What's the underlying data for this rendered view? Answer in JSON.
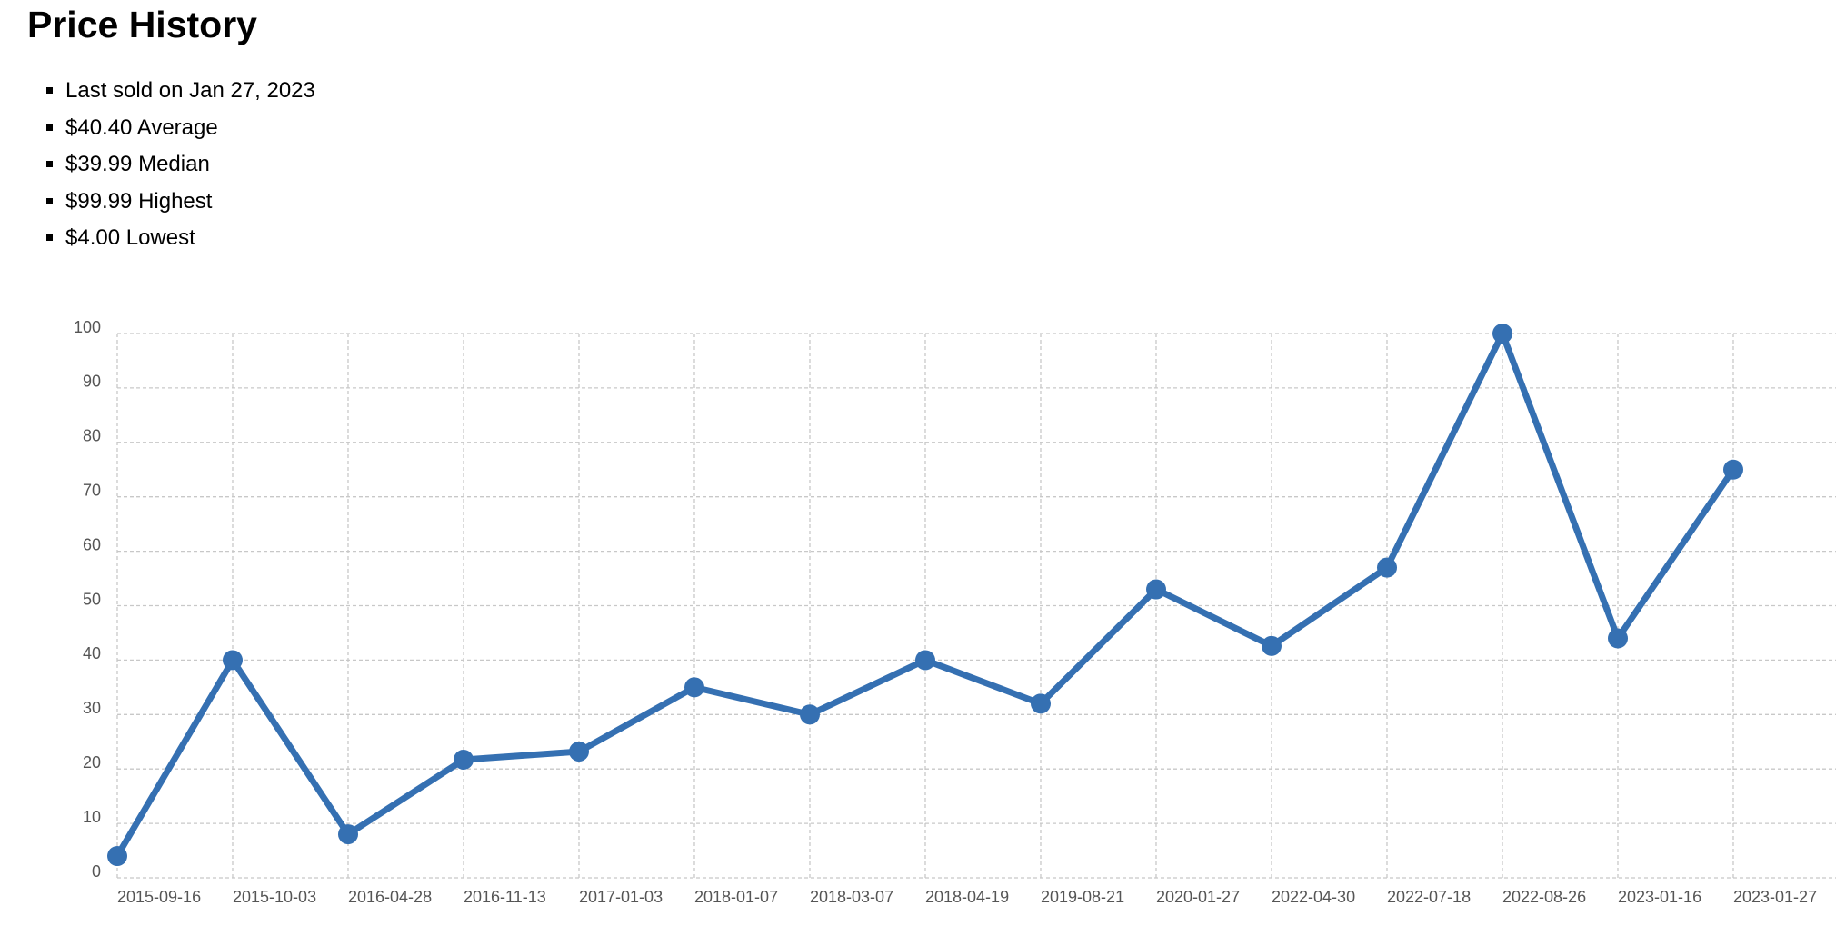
{
  "header": {
    "title": "Price History"
  },
  "stats": [
    "Last sold on Jan 27, 2023",
    "$40.40 Average",
    "$39.99 Median",
    "$99.99 Highest",
    "$4.00 Lowest"
  ],
  "chart_data": {
    "type": "line",
    "categories": [
      "2015-09-16",
      "2015-10-03",
      "2016-04-28",
      "2016-11-13",
      "2017-01-03",
      "2018-01-07",
      "2018-03-07",
      "2018-04-19",
      "2019-08-21",
      "2020-01-27",
      "2022-04-30",
      "2022-07-18",
      "2022-08-26",
      "2023-01-16",
      "2023-01-27"
    ],
    "series": [
      {
        "color": "#3570b2",
        "values": [
          4,
          39.99,
          8,
          21.7,
          23.2,
          35,
          30,
          39.99,
          32,
          53,
          42.6,
          57,
          99.99,
          44,
          75
        ]
      }
    ],
    "ylim": [
      0,
      100
    ],
    "yticks": [
      0,
      10,
      20,
      30,
      40,
      50,
      60,
      70,
      80,
      90,
      100
    ],
    "grid": true
  }
}
